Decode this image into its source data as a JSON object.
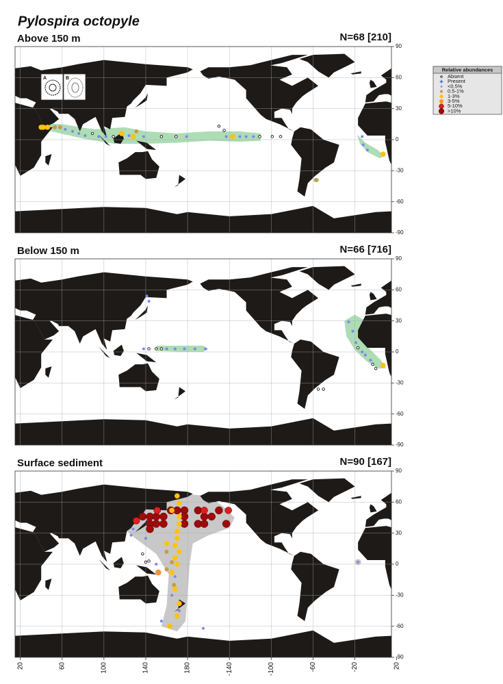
{
  "title": "Pylospira octopyle",
  "legend": {
    "title": "Relative abundances",
    "entries": [
      {
        "label": "Absent",
        "color": "#000000"
      },
      {
        "label": "Present",
        "color": "#3b4fd8"
      },
      {
        "label": "<0.5%",
        "color": "#7b86f0"
      },
      {
        "label": "0.5-1%",
        "color": "#c89a4a"
      },
      {
        "label": "1-3%",
        "color": "#ffc20e"
      },
      {
        "label": "3-5%",
        "color": "#f4923a"
      },
      {
        "label": "5-10%",
        "color": "#dc1f1f"
      },
      {
        "label": ">10%",
        "color": "#9e0b0b"
      }
    ]
  },
  "axes": {
    "xlim": [
      15,
      375
    ],
    "ylim": [
      -90,
      90
    ],
    "yticks": [
      90,
      60,
      30,
      0,
      -30,
      -60,
      -90
    ],
    "xticks": [
      20,
      60,
      100,
      140,
      180,
      {
        "value": 220,
        "label": "-140"
      },
      {
        "value": 260,
        "label": "-100"
      },
      {
        "value": 300,
        "label": "-60"
      },
      {
        "value": 340,
        "label": "-20"
      },
      {
        "value": 380,
        "label": "20"
      }
    ],
    "grid": true
  },
  "panels": [
    {
      "label": "Above 150 m",
      "count_label": "N=68 [210]",
      "inset_labels": [
        "A",
        "B"
      ],
      "lon": [
        40,
        42,
        46,
        53,
        58,
        63,
        70,
        76,
        82,
        89,
        95,
        102,
        109,
        117,
        124,
        128,
        131,
        138,
        155,
        169,
        179,
        -150,
        -145,
        -143,
        -137,
        -130,
        -124,
        -117,
        -111,
        -99,
        -91,
        -13,
        -12,
        -8,
        7,
        -57
      ],
      "lat": [
        12,
        12,
        12,
        12,
        12,
        10,
        8,
        6,
        4,
        6,
        3,
        3,
        3,
        6,
        4,
        3,
        8,
        3,
        3,
        3,
        3,
        13,
        9,
        3,
        3,
        3,
        3,
        3,
        3,
        3,
        3,
        3,
        -5,
        -10,
        -14,
        -39
      ],
      "class": [
        4,
        4,
        4,
        3,
        3,
        2,
        2,
        2,
        2,
        0,
        2,
        2,
        0,
        4,
        2,
        4,
        3,
        2,
        0,
        0,
        2,
        0,
        0,
        2,
        4,
        2,
        2,
        2,
        0,
        0,
        0,
        2,
        2,
        2,
        4,
        3
      ]
    },
    {
      "label": "Below 150 m",
      "count_label": "N=66 [716]",
      "lon": [
        141,
        143,
        138,
        143,
        150,
        155,
        160,
        168,
        177,
        -173,
        -163,
        -26,
        -22,
        -19,
        -17,
        -13,
        -10,
        -5,
        7,
        -3,
        0,
        -55,
        -50
      ],
      "lat": [
        54,
        49,
        3,
        3,
        3,
        3,
        3,
        3,
        3,
        3,
        3,
        29,
        20,
        9,
        4,
        0,
        -3,
        -8,
        -13,
        -12,
        -16,
        -36,
        -36
      ],
      "class": [
        2,
        2,
        2,
        0,
        0,
        0,
        2,
        2,
        2,
        2,
        2,
        2,
        2,
        2,
        0,
        2,
        2,
        2,
        4,
        0,
        0,
        0,
        0
      ]
    },
    {
      "label": "Surface sediment",
      "count_label": "N=90 [167]",
      "lon": [
        137,
        144,
        150,
        157,
        144,
        150,
        157,
        144,
        164,
        170,
        177,
        177,
        177,
        -170,
        -164,
        -170,
        -164,
        -157,
        -150,
        -143,
        131,
        151,
        -164,
        -141,
        170,
        172,
        165,
        172,
        172,
        170,
        170,
        160,
        168,
        172,
        168,
        170,
        165,
        168,
        172,
        170,
        163,
        152,
        160,
        165,
        160,
        167,
        128,
        126,
        140,
        150,
        168,
        165,
        155,
        -165,
        -17,
        172,
        137,
        140,
        143
      ],
      "lat": [
        46,
        46,
        46,
        46,
        39,
        39,
        39,
        34,
        52,
        52,
        52,
        46,
        39,
        52,
        46,
        39,
        39,
        46,
        52,
        39,
        42,
        52,
        52,
        52,
        66,
        59,
        52,
        46,
        39,
        32,
        25,
        20,
        18,
        12,
        6,
        0,
        -8,
        -24,
        -38,
        -50,
        -60,
        -8,
        12,
        2,
        -5,
        -20,
        34,
        28,
        25,
        0,
        -12,
        -30,
        -55,
        -62,
        2,
        -45,
        10,
        2,
        3
      ],
      "class": [
        7,
        7,
        7,
        7,
        7,
        7,
        7,
        7,
        7,
        7,
        7,
        7,
        7,
        7,
        7,
        7,
        7,
        7,
        7,
        7,
        6,
        6,
        6,
        6,
        4,
        4,
        4,
        4,
        4,
        4,
        4,
        4,
        4,
        4,
        4,
        4,
        4,
        4,
        4,
        4,
        4,
        5,
        3,
        3,
        3,
        3,
        2,
        2,
        2,
        2,
        2,
        2,
        2,
        2,
        2,
        2,
        0,
        0,
        0
      ]
    }
  ]
}
